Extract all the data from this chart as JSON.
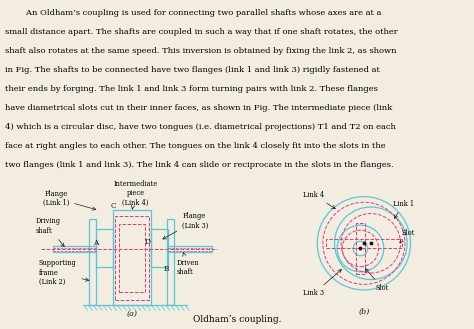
{
  "title_text_indent": "        An Oldham’s coupling is used for connecting two parallel shafts whose axes are at a",
  "title_line1": "        An Oldham’s coupling is used for connecting two parallel shafts whose axes are at a",
  "title_lines": [
    "        An Oldham’s coupling is used for connecting two parallel shafts whose axes are at a",
    "small distance apart. The shafts are coupled in such a way that if one shaft rotates, the other",
    "shaft also rotates at the same speed. This inversion is obtained by fixing the link 2, as shown",
    "in Fig. The shafts to be connected have two flanges (link 1 and link 3) rigidly fastened at",
    "their ends by forging. The link 1 and link 3 form turning pairs with link 2. These flanges",
    "have diametrical slots cut in their inner faces, as shown in Fig. The intermediate piece (link",
    "4) which is a circular disc, have two tongues (i.e. diametrical projections) T1 and T2 on each",
    "face at right angles to each other. The tongues on the link 4 closely fit into the slots in the",
    "two flanges (link 1 and link 3). The link 4 can slide or reciprocate in the slots in the flanges."
  ],
  "caption": "Oldham’s coupling.",
  "cyan": "#55c8d8",
  "pink": "#d8407a",
  "black": "#1a1a1a",
  "bg": "#f2ede0",
  "fig_width": 4.74,
  "fig_height": 3.29,
  "label_a": "(a)",
  "label_b": "(b)"
}
